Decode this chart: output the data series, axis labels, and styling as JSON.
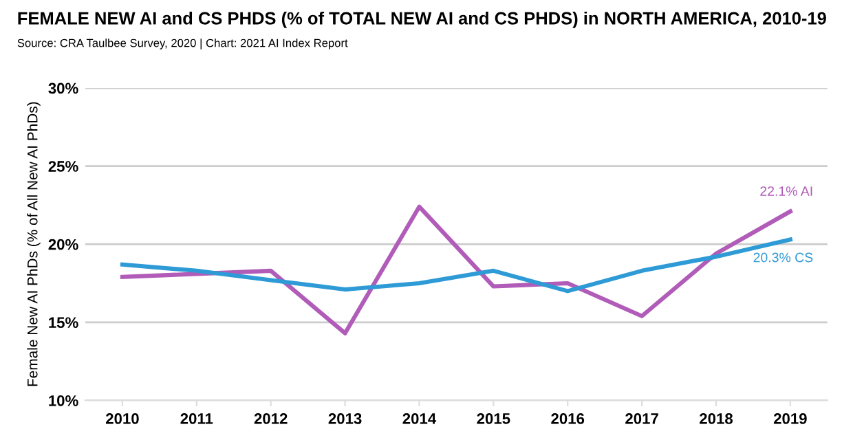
{
  "chart_data": {
    "type": "line",
    "title": "FEMALE NEW AI and CS PHDS (% of TOTAL NEW AI and CS PHDS) in NORTH AMERICA, 2010-19",
    "subtitle": "Source: CRA Taulbee Survey, 2020 | Chart: 2021 AI Index Report",
    "ylabel": "Female New AI PhDs (% of All New AI PhDs)",
    "categories": [
      "2010",
      "2011",
      "2012",
      "2013",
      "2014",
      "2015",
      "2016",
      "2017",
      "2018",
      "2019"
    ],
    "series": [
      {
        "color": "#b05cb8",
        "values": [
          17.9,
          18.1,
          18.3,
          14.3,
          22.4,
          17.3,
          17.5,
          15.4,
          19.4,
          22.1
        ]
      },
      {
        "color": "#2e9bd6",
        "values": [
          18.7,
          18.3,
          17.7,
          17.1,
          17.5,
          18.3,
          17.0,
          18.3,
          19.2,
          20.3
        ]
      }
    ],
    "annotations": [
      {
        "text": "22.1% AI",
        "x": "2019",
        "y": 22.1
      },
      {
        "text": "20.3% CS",
        "x": "2019",
        "y": 20.3
      }
    ],
    "ylim": [
      10,
      30
    ],
    "yticks": [
      {
        "value": 10,
        "label": "10%"
      },
      {
        "value": 15,
        "label": "15%"
      },
      {
        "value": 20,
        "label": "20%"
      },
      {
        "value": 25,
        "label": "25%"
      },
      {
        "value": 30,
        "label": "30%"
      }
    ],
    "grid": "y",
    "legend": false,
    "marker": "none",
    "line_style": "solid"
  }
}
